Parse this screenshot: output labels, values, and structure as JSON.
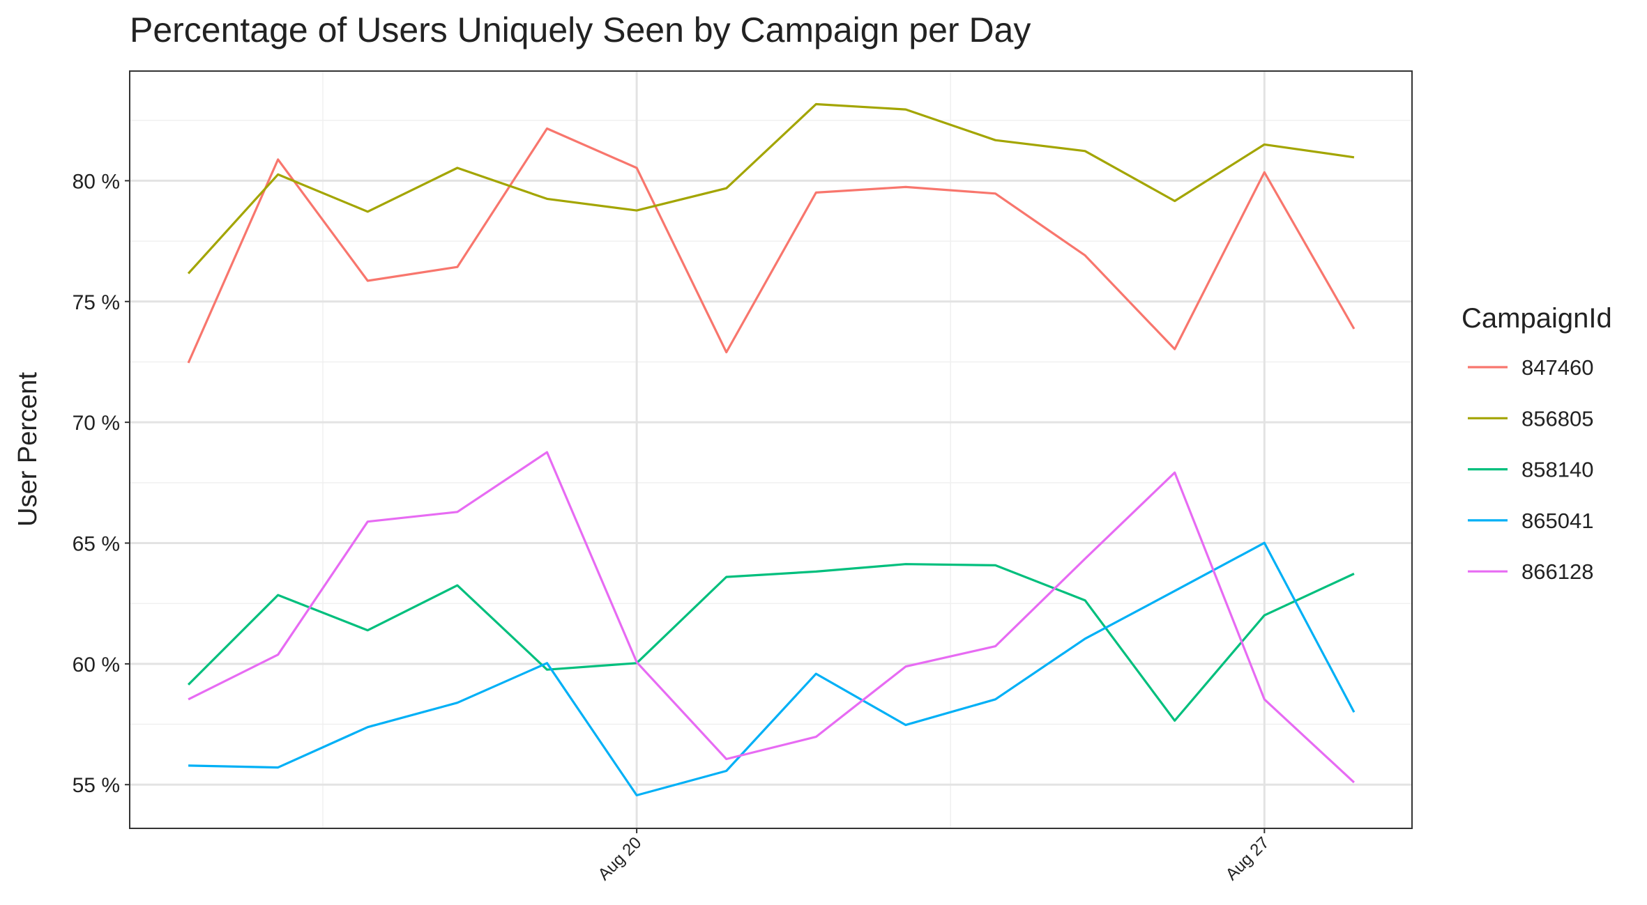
{
  "chart_data": {
    "type": "line",
    "title": "Percentage of Users Uniquely Seen by Campaign per Day",
    "y_label": "User Percent",
    "legend_title": "CampaignId",
    "legend": "right",
    "grid": true,
    "x": [
      "Aug 15",
      "Aug 16",
      "Aug 17",
      "Aug 18",
      "Aug 19",
      "Aug 20",
      "Aug 21",
      "Aug 22",
      "Aug 23",
      "Aug 24",
      "Aug 25",
      "Aug 26",
      "Aug 27",
      "Aug 28"
    ],
    "xticks": [
      "Aug 20",
      "Aug 27"
    ],
    "ylim": [
      53.19,
      84.54
    ],
    "yticks": [
      {
        "value": 55,
        "label": "55 %"
      },
      {
        "value": 60,
        "label": "60 %"
      },
      {
        "value": 65,
        "label": "65 %"
      },
      {
        "value": 70,
        "label": "70 %"
      },
      {
        "value": 75,
        "label": "75 %"
      },
      {
        "value": 80,
        "label": "80 %"
      }
    ],
    "series": [
      {
        "name": "847460",
        "color": "#F8766D",
        "values": [
          72.46,
          80.88,
          75.86,
          76.43,
          82.16,
          80.53,
          72.9,
          79.51,
          79.74,
          79.47,
          76.91,
          73.03,
          80.35,
          73.87
        ]
      },
      {
        "name": "856805",
        "color": "#A3A500",
        "values": [
          76.16,
          80.26,
          78.72,
          80.53,
          79.25,
          78.77,
          79.69,
          83.17,
          82.95,
          81.68,
          81.23,
          79.16,
          81.5,
          80.97
        ]
      },
      {
        "name": "858140",
        "color": "#00BF7D",
        "values": [
          59.14,
          62.85,
          61.39,
          63.25,
          59.76,
          60.03,
          63.6,
          63.82,
          64.13,
          64.08,
          62.63,
          57.65,
          62.01,
          63.73
        ]
      },
      {
        "name": "865041",
        "color": "#00B0F6",
        "values": [
          55.79,
          55.71,
          57.38,
          58.39,
          60.03,
          54.56,
          55.57,
          59.59,
          57.47,
          58.53,
          61.04,
          63.02,
          65.01,
          58.0
        ]
      },
      {
        "name": "866128",
        "color": "#E76BF3",
        "values": [
          58.53,
          60.38,
          65.89,
          66.29,
          68.76,
          60.07,
          56.06,
          56.98,
          59.89,
          60.73,
          64.35,
          67.92,
          58.53,
          55.09
        ]
      }
    ]
  }
}
